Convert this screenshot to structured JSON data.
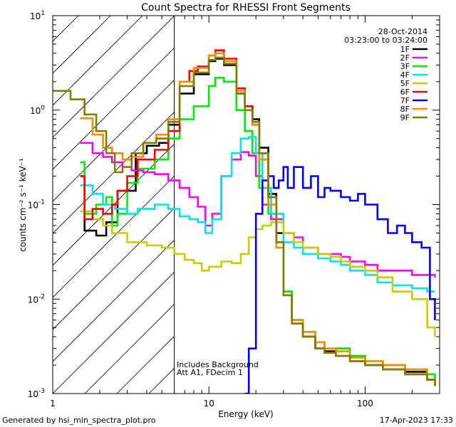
{
  "chart_data": {
    "type": "line",
    "title": "Count Spectra for RHESSI Front Segments",
    "xlabel": "Energy (keV)",
    "ylabel": "counts cm⁻² s⁻¹ keV⁻¹",
    "xscale": "log",
    "yscale": "log",
    "xlim": [
      1,
      300
    ],
    "ylim": [
      0.001,
      10
    ],
    "x_ticks": [
      {
        "value": 1,
        "label": "1"
      },
      {
        "value": 10,
        "label": "10"
      },
      {
        "value": 100,
        "label": "100"
      }
    ],
    "y_ticks": [
      {
        "value": 0.001,
        "base": "10",
        "exp": "-3"
      },
      {
        "value": 0.01,
        "base": "10",
        "exp": "-2"
      },
      {
        "value": 0.1,
        "base": "10",
        "exp": "-1"
      },
      {
        "value": 1,
        "base": "10",
        "exp": "0"
      },
      {
        "value": 10,
        "base": "10",
        "exp": "1"
      }
    ],
    "excluded_region": {
      "from": 1,
      "to": 6
    },
    "date": "28-Oct-2014",
    "time_range": "03:23:00 to 03:24:00",
    "notes": [
      "Includes Background",
      "Att A1, FDecim 1"
    ],
    "series": [
      {
        "name": "1F",
        "color": "#000000",
        "points": [
          [
            1.5,
            0.2
          ],
          [
            1.6,
            0.053
          ],
          [
            1.9,
            0.047
          ],
          [
            2.2,
            0.065
          ],
          [
            2.6,
            0.14
          ],
          [
            3.0,
            0.14
          ],
          [
            3.4,
            0.35
          ],
          [
            4.0,
            0.42
          ],
          [
            4.8,
            0.45
          ],
          [
            5.5,
            0.7
          ],
          [
            6.5,
            1.5
          ],
          [
            8,
            2.4
          ],
          [
            10,
            3.3
          ],
          [
            11,
            3.5
          ],
          [
            12.5,
            3.0
          ],
          [
            15,
            1.5
          ],
          [
            17,
            1.1
          ],
          [
            19,
            0.8
          ],
          [
            21,
            0.4
          ],
          [
            24,
            0.13
          ],
          [
            27,
            0.05
          ],
          [
            30,
            0.012
          ],
          [
            34,
            0.006
          ],
          [
            40,
            0.004
          ],
          [
            48,
            0.003
          ],
          [
            55,
            0.0028
          ],
          [
            65,
            0.003
          ],
          [
            80,
            0.0025
          ],
          [
            100,
            0.002
          ],
          [
            130,
            0.002
          ],
          [
            180,
            0.0017
          ],
          [
            250,
            0.0014
          ],
          [
            280,
            0.0012
          ]
        ]
      },
      {
        "name": "2F",
        "color": "#ff00ff",
        "points": [
          [
            1.5,
            0.45
          ],
          [
            1.8,
            0.35
          ],
          [
            2.1,
            0.32
          ],
          [
            2.4,
            0.28
          ],
          [
            2.8,
            0.25
          ],
          [
            3.2,
            0.23
          ],
          [
            3.8,
            0.22
          ],
          [
            4.5,
            0.21
          ],
          [
            5.5,
            0.18
          ],
          [
            6.5,
            0.15
          ],
          [
            7.5,
            0.12
          ],
          [
            8.5,
            0.095
          ],
          [
            9.5,
            0.06
          ],
          [
            10.5,
            0.08
          ],
          [
            12,
            0.2
          ],
          [
            14,
            0.3
          ],
          [
            16,
            0.36
          ],
          [
            18,
            0.33
          ],
          [
            20,
            0.2
          ],
          [
            22,
            0.1
          ],
          [
            25,
            0.07
          ],
          [
            30,
            0.05
          ],
          [
            35,
            0.045
          ],
          [
            40,
            0.035
          ],
          [
            50,
            0.03
          ],
          [
            60,
            0.03
          ],
          [
            70,
            0.028
          ],
          [
            80,
            0.025
          ],
          [
            100,
            0.023
          ],
          [
            120,
            0.02
          ],
          [
            150,
            0.02
          ],
          [
            200,
            0.018
          ],
          [
            250,
            0.018
          ],
          [
            280,
            0.017
          ]
        ]
      },
      {
        "name": "3F",
        "color": "#00ee00",
        "points": [
          [
            1.5,
            0.28
          ],
          [
            1.6,
            0.08
          ],
          [
            1.9,
            0.1
          ],
          [
            2.2,
            0.12
          ],
          [
            2.4,
            0.06
          ],
          [
            2.6,
            0.08
          ],
          [
            3.0,
            0.17
          ],
          [
            3.5,
            0.24
          ],
          [
            4.5,
            0.3
          ],
          [
            5.5,
            0.5
          ],
          [
            6.5,
            0.8
          ],
          [
            8,
            1.1
          ],
          [
            10,
            1.8
          ],
          [
            11,
            2.2
          ],
          [
            12.5,
            2.0
          ],
          [
            15,
            1.0
          ],
          [
            17,
            0.6
          ],
          [
            19,
            0.35
          ],
          [
            21,
            0.15
          ],
          [
            24,
            0.08
          ],
          [
            27,
            0.04
          ],
          [
            30,
            0.012
          ],
          [
            34,
            0.006
          ],
          [
            40,
            0.0045
          ],
          [
            48,
            0.0035
          ],
          [
            55,
            0.003
          ],
          [
            65,
            0.003
          ],
          [
            80,
            0.0025
          ],
          [
            100,
            0.0022
          ],
          [
            130,
            0.002
          ],
          [
            180,
            0.0018
          ],
          [
            250,
            0.0016
          ],
          [
            280,
            0.0012
          ]
        ]
      },
      {
        "name": "4F",
        "color": "#00e5ee",
        "points": [
          [
            1.5,
            0.16
          ],
          [
            1.8,
            0.13
          ],
          [
            2.1,
            0.1
          ],
          [
            2.5,
            0.09
          ],
          [
            3.0,
            0.08
          ],
          [
            3.5,
            0.09
          ],
          [
            4.5,
            0.1
          ],
          [
            5.5,
            0.09
          ],
          [
            6.5,
            0.075
          ],
          [
            7.5,
            0.07
          ],
          [
            8.5,
            0.065
          ],
          [
            9.5,
            0.05
          ],
          [
            10.5,
            0.07
          ],
          [
            12,
            0.2
          ],
          [
            14,
            0.35
          ],
          [
            16,
            0.5
          ],
          [
            18,
            0.52
          ],
          [
            20,
            0.35
          ],
          [
            22,
            0.15
          ],
          [
            25,
            0.08
          ],
          [
            30,
            0.04
          ],
          [
            35,
            0.035
          ],
          [
            40,
            0.03
          ],
          [
            50,
            0.027
          ],
          [
            60,
            0.025
          ],
          [
            70,
            0.023
          ],
          [
            80,
            0.02
          ],
          [
            100,
            0.018
          ],
          [
            120,
            0.015
          ],
          [
            150,
            0.014
          ],
          [
            200,
            0.013
          ],
          [
            250,
            0.012
          ],
          [
            280,
            0.012
          ]
        ]
      },
      {
        "name": "5F",
        "color": "#cccc00",
        "points": [
          [
            1.5,
            0.085
          ],
          [
            1.8,
            0.07
          ],
          [
            2.1,
            0.06
          ],
          [
            2.4,
            0.05
          ],
          [
            3.0,
            0.04
          ],
          [
            4.0,
            0.037
          ],
          [
            5.0,
            0.035
          ],
          [
            6.0,
            0.03
          ],
          [
            7.0,
            0.026
          ],
          [
            8.0,
            0.024
          ],
          [
            9.0,
            0.02
          ],
          [
            10,
            0.022
          ],
          [
            12,
            0.025
          ],
          [
            14,
            0.024
          ],
          [
            16,
            0.03
          ],
          [
            18,
            0.045
          ],
          [
            20,
            0.055
          ],
          [
            22,
            0.06
          ],
          [
            25,
            0.065
          ],
          [
            30,
            0.05
          ],
          [
            35,
            0.04
          ],
          [
            40,
            0.035
          ],
          [
            50,
            0.03
          ],
          [
            60,
            0.028
          ],
          [
            70,
            0.025
          ],
          [
            80,
            0.022
          ],
          [
            100,
            0.02
          ],
          [
            120,
            0.017
          ],
          [
            150,
            0.012
          ],
          [
            200,
            0.01
          ],
          [
            250,
            0.005
          ],
          [
            280,
            0.004
          ]
        ]
      },
      {
        "name": "6F",
        "color": "#ff0000",
        "points": [
          [
            1.5,
            0.2
          ],
          [
            1.6,
            0.07
          ],
          [
            1.8,
            0.09
          ],
          [
            2.1,
            0.08
          ],
          [
            2.4,
            0.1
          ],
          [
            2.6,
            0.14
          ],
          [
            3.0,
            0.2
          ],
          [
            3.5,
            0.3
          ],
          [
            4.5,
            0.38
          ],
          [
            5.5,
            0.6
          ],
          [
            6.5,
            2.0
          ],
          [
            7.5,
            2.6
          ],
          [
            8.5,
            2.9
          ],
          [
            10,
            3.8
          ],
          [
            11,
            4.3
          ],
          [
            12.5,
            3.5
          ],
          [
            15,
            1.7
          ],
          [
            17,
            1.1
          ],
          [
            19,
            0.7
          ],
          [
            21,
            0.35
          ],
          [
            24,
            0.12
          ],
          [
            27,
            0.04
          ],
          [
            30,
            0.011
          ],
          [
            34,
            0.0055
          ],
          [
            40,
            0.004
          ],
          [
            48,
            0.003
          ],
          [
            55,
            0.0027
          ],
          [
            65,
            0.0025
          ],
          [
            80,
            0.0022
          ],
          [
            100,
            0.002
          ],
          [
            130,
            0.0018
          ],
          [
            180,
            0.0016
          ],
          [
            250,
            0.0014
          ],
          [
            280,
            0.0013
          ]
        ]
      },
      {
        "name": "7F",
        "color": "#0000ff",
        "points": [
          [
            17,
            0.001
          ],
          [
            18,
            0.003
          ],
          [
            20,
            0.08
          ],
          [
            22,
            0.18
          ],
          [
            24,
            0.2
          ],
          [
            26,
            0.15
          ],
          [
            28,
            0.18
          ],
          [
            30,
            0.25
          ],
          [
            32,
            0.15
          ],
          [
            35,
            0.25
          ],
          [
            40,
            0.15
          ],
          [
            45,
            0.2
          ],
          [
            50,
            0.12
          ],
          [
            55,
            0.15
          ],
          [
            60,
            0.14
          ],
          [
            70,
            0.12
          ],
          [
            80,
            0.11
          ],
          [
            90,
            0.13
          ],
          [
            100,
            0.1
          ],
          [
            120,
            0.07
          ],
          [
            140,
            0.05
          ],
          [
            160,
            0.06
          ],
          [
            180,
            0.05
          ],
          [
            200,
            0.04
          ],
          [
            230,
            0.035
          ],
          [
            260,
            0.01
          ],
          [
            280,
            0.006
          ]
        ]
      },
      {
        "name": "8F",
        "color": "#ff8800",
        "points": [
          [
            1.5,
            0.82
          ],
          [
            1.8,
            0.55
          ],
          [
            2.1,
            0.4
          ],
          [
            2.4,
            0.35
          ],
          [
            2.8,
            0.3
          ],
          [
            3.2,
            0.32
          ],
          [
            3.8,
            0.45
          ],
          [
            4.6,
            0.55
          ],
          [
            5.5,
            0.8
          ],
          [
            6.5,
            2.0
          ],
          [
            8,
            2.8
          ],
          [
            10,
            3.8
          ],
          [
            11,
            4.0
          ],
          [
            12.5,
            3.3
          ],
          [
            15,
            1.6
          ],
          [
            17,
            1.0
          ],
          [
            19,
            0.7
          ],
          [
            21,
            0.3
          ],
          [
            24,
            0.1
          ],
          [
            27,
            0.035
          ],
          [
            30,
            0.011
          ],
          [
            34,
            0.006
          ],
          [
            40,
            0.0045
          ],
          [
            48,
            0.0035
          ],
          [
            55,
            0.003
          ],
          [
            65,
            0.0028
          ],
          [
            80,
            0.0024
          ],
          [
            100,
            0.0022
          ],
          [
            130,
            0.002
          ],
          [
            180,
            0.0018
          ],
          [
            250,
            0.0014
          ],
          [
            280,
            0.0012
          ]
        ]
      },
      {
        "name": "9F",
        "color": "#808000",
        "points": [
          [
            1.0,
            1.6
          ],
          [
            1.3,
            1.3
          ],
          [
            1.6,
            0.9
          ],
          [
            1.9,
            0.6
          ],
          [
            2.2,
            0.35
          ],
          [
            2.5,
            0.22
          ],
          [
            2.8,
            0.25
          ],
          [
            3.2,
            0.35
          ],
          [
            3.8,
            0.45
          ],
          [
            4.6,
            0.5
          ],
          [
            5.5,
            0.75
          ],
          [
            6.5,
            1.8
          ],
          [
            8,
            2.5
          ],
          [
            10,
            3.4
          ],
          [
            11,
            3.6
          ],
          [
            12.5,
            3.1
          ],
          [
            15,
            1.5
          ],
          [
            17,
            1.0
          ],
          [
            19,
            0.75
          ],
          [
            21,
            0.35
          ],
          [
            24,
            0.12
          ],
          [
            27,
            0.04
          ],
          [
            30,
            0.011
          ],
          [
            34,
            0.0055
          ],
          [
            40,
            0.004
          ],
          [
            48,
            0.003
          ],
          [
            55,
            0.0027
          ],
          [
            65,
            0.0025
          ],
          [
            80,
            0.0022
          ],
          [
            100,
            0.002
          ],
          [
            130,
            0.0018
          ],
          [
            180,
            0.0016
          ],
          [
            250,
            0.0014
          ],
          [
            280,
            0.0012
          ]
        ]
      }
    ]
  },
  "footer": {
    "generated_by": "Generated by hsi_min_spectra_plot.pro",
    "timestamp": "17-Apr-2023 17:33"
  }
}
